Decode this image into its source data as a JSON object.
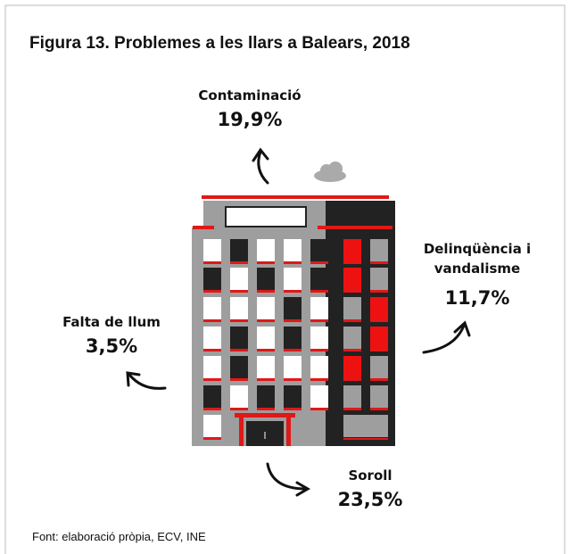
{
  "header": {
    "title": "Figura 13. Problemes a les llars a Balears, 2018"
  },
  "items": [
    {
      "label": "Contaminació",
      "value": "19,9%"
    },
    {
      "label": "Delinqüència i vandalisme",
      "value": "11,7%"
    },
    {
      "label": "Falta de llum",
      "value": "3,5%"
    },
    {
      "label": "Soroll",
      "value": "23,5%"
    }
  ],
  "footer": {
    "source": "Font:  elaboració pròpia, ECV, INE"
  }
}
